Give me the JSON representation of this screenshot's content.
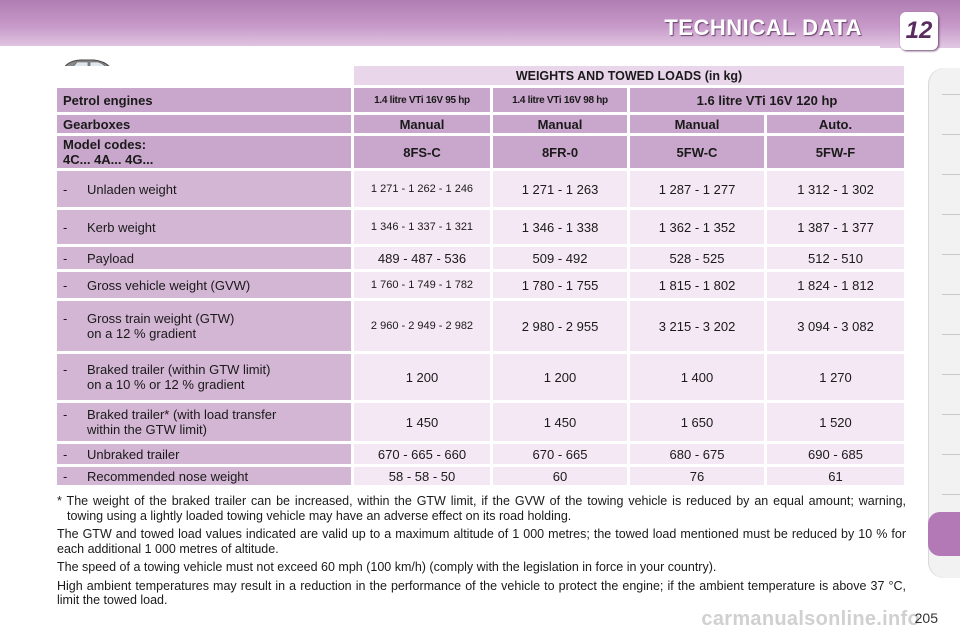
{
  "header": {
    "title": "TECHNICAL DATA",
    "chapter": "12"
  },
  "table": {
    "title": "WEIGHTS AND TOWED LOADS (in kg)",
    "engine_label": "Petrol engines",
    "engines": [
      "1.4 litre VTi 16V 95 hp",
      "1.4 litre VTi 16V 98 hp",
      "1.6 litre VTi 16V 120 hp"
    ],
    "gearbox_label": "Gearboxes",
    "gearboxes": [
      "Manual",
      "Manual",
      "Manual",
      "Auto."
    ],
    "codes_label_line1": "Model codes:",
    "codes_label_line2": "4C... 4A... 4G...",
    "codes": [
      "8FS-C",
      "8FR-0",
      "5FW-C",
      "5FW-F"
    ],
    "rows": [
      {
        "dash": "-",
        "label": "Unladen weight",
        "label2": "",
        "values": [
          "1 271 - 1 262 - 1 246",
          "1 271 - 1 263",
          "1 287 - 1 277",
          "1 312 - 1 302"
        ]
      },
      {
        "dash": "-",
        "label": "Kerb weight",
        "label2": "",
        "values": [
          "1 346 - 1 337 - 1 321",
          "1 346 - 1 338",
          "1 362 - 1 352",
          "1 387 - 1 377"
        ]
      },
      {
        "dash": "-",
        "label": "Payload",
        "label2": "",
        "values": [
          "489 - 487 - 536",
          "509 - 492",
          "528 - 525",
          "512 - 510"
        ]
      },
      {
        "dash": "-",
        "label": "Gross vehicle weight (GVW)",
        "label2": "",
        "values": [
          "1 760 - 1 749 - 1 782",
          "1 780 - 1 755",
          "1 815 - 1 802",
          "1 824 - 1 812"
        ]
      },
      {
        "dash": "-",
        "label": "Gross train weight (GTW)",
        "label2": "on a 12 % gradient",
        "values": [
          "2 960 - 2 949 - 2 982",
          "2 980 - 2 955",
          "3 215 - 3 202",
          "3 094 - 3 082"
        ]
      },
      {
        "dash": "-",
        "label": "Braked trailer (within GTW limit)",
        "label2": "on a 10 % or 12 % gradient",
        "values": [
          "1 200",
          "1 200",
          "1 400",
          "1 270"
        ]
      },
      {
        "dash": "-",
        "label": "Braked trailer* (with load transfer",
        "label2": "within the GTW limit)",
        "values": [
          "1 450",
          "1 450",
          "1 650",
          "1 520"
        ]
      },
      {
        "dash": "-",
        "label": "Unbraked trailer",
        "label2": "",
        "values": [
          "670 - 665 - 660",
          "670 - 665",
          "680 - 675",
          "690 - 685"
        ]
      },
      {
        "dash": "-",
        "label": "Recommended nose weight",
        "label2": "",
        "values": [
          "58 - 58 - 50",
          "60",
          "76",
          "61"
        ]
      }
    ]
  },
  "notes": {
    "footnote": "* The weight of the braked trailer can be increased, within the GTW limit, if the GVW of the towing vehicle is reduced by an equal amount; warning, towing using a lightly loaded towing vehicle may have an adverse effect on its road holding.",
    "altitude": "The GTW and towed load values indicated are valid up to a maximum altitude of 1 000 metres; the towed load mentioned must be reduced by 10 % for each additional 1 000 metres of altitude.",
    "speed": "The speed of a towing vehicle must not exceed 60 mph (100 km/h) (comply with the legislation in force in your country).",
    "temperature": "High ambient temperatures may result in a reduction in the performance of the vehicle to protect the engine; if the ambient temperature is above 37 °C, limit the towed load."
  },
  "page_number": "205",
  "watermark": "carmanualsonline.info",
  "icons": {
    "car": "car-icon"
  },
  "colors": {
    "header": "#b07db3",
    "label_cell": "#d3b5d4",
    "value_cell": "#f5e8f5",
    "head_cell": "#c9a6cb"
  }
}
